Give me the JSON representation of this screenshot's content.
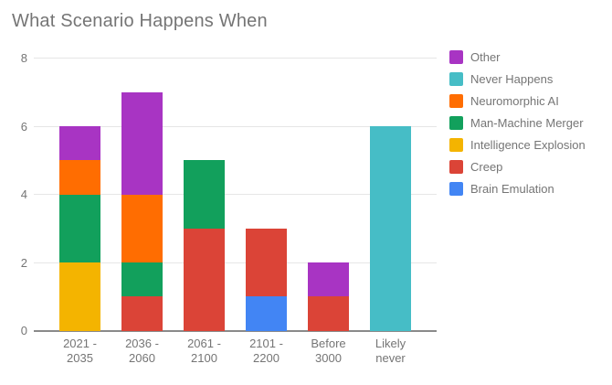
{
  "chart_data": {
    "type": "bar",
    "stacked": true,
    "title": "What Scenario Happens When",
    "xlabel": "",
    "ylabel": "",
    "ylim": [
      0,
      8
    ],
    "yticks": [
      0,
      2,
      4,
      6,
      8
    ],
    "grid": true,
    "categories": [
      "2021 -\n2035",
      "2036 -\n2060",
      "2061 -\n2100",
      "2101 -\n2200",
      "Before\n3000",
      "Likely\nnever"
    ],
    "series": [
      {
        "name": "Brain Emulation",
        "color": "#4285F4",
        "values": [
          0,
          0,
          0,
          1,
          0,
          0
        ]
      },
      {
        "name": "Creep",
        "color": "#DB4437",
        "values": [
          0,
          1,
          3,
          2,
          1,
          0
        ]
      },
      {
        "name": "Intelligence Explosion",
        "color": "#F4B400",
        "values": [
          2,
          0,
          0,
          0,
          0,
          0
        ]
      },
      {
        "name": "Man-Machine Merger",
        "color": "#12A05C",
        "values": [
          2,
          1,
          2,
          0,
          0,
          0
        ]
      },
      {
        "name": "Neuromorphic AI",
        "color": "#FF6D01",
        "values": [
          1,
          2,
          0,
          0,
          0,
          0
        ]
      },
      {
        "name": "Never Happens",
        "color": "#46BDC6",
        "values": [
          0,
          0,
          0,
          0,
          0,
          6
        ]
      },
      {
        "name": "Other",
        "color": "#A834C3",
        "values": [
          1,
          3,
          0,
          0,
          1,
          0
        ]
      }
    ],
    "totals": [
      6,
      7,
      5,
      3,
      2,
      6
    ],
    "legend": {
      "position": "right",
      "items": [
        "Other",
        "Never Happens",
        "Neuromorphic AI",
        "Man-Machine Merger",
        "Intelligence Explosion",
        "Creep",
        "Brain Emulation"
      ]
    }
  }
}
